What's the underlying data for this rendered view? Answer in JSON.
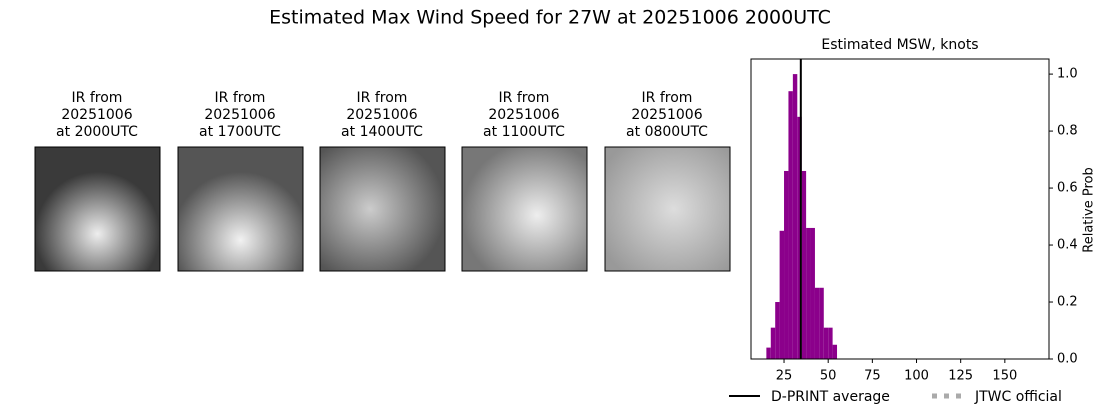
{
  "panels": [
    {
      "lines": [
        "IR from",
        "20251006",
        "at 2000UTC"
      ]
    },
    {
      "lines": [
        "IR from",
        "20251006",
        "at 1700UTC"
      ]
    },
    {
      "lines": [
        "IR from",
        "20251006",
        "at 1400UTC"
      ]
    },
    {
      "lines": [
        "IR from",
        "20251006",
        "at 1100UTC"
      ]
    },
    {
      "lines": [
        "IR from",
        "20251006",
        "at 0800UTC"
      ]
    }
  ],
  "chart_data": {
    "type": "histogram",
    "title": "Estimated Max Wind Speed for 27W at 20251006 2000UTC",
    "subtitle": "Estimated MSW, knots",
    "ylabel": "Relative Prob",
    "bins": [
      15,
      17.5,
      20,
      22.5,
      25,
      27.5,
      30,
      32.5,
      35,
      37.5,
      40,
      42.5,
      45,
      47.5,
      50,
      52.5,
      55
    ],
    "values": [
      0.04,
      0.11,
      0.2,
      0.45,
      0.66,
      0.94,
      1.0,
      0.85,
      0.66,
      0.46,
      0.46,
      0.25,
      0.25,
      0.11,
      0.11,
      0.05
    ],
    "color": "#8b008b",
    "xlim": [
      6.3,
      175
    ],
    "xticks": [
      25,
      50,
      75,
      100,
      125,
      150
    ],
    "ylim": [
      0,
      1.053
    ],
    "yticks": [
      {
        "value": 0,
        "label": "0.0"
      },
      0.2,
      0.4,
      0.6,
      0.8,
      {
        "value": 1,
        "label": "1.0"
      }
    ],
    "y_axis_side": "right",
    "average": {
      "name": "D-PRINT average",
      "value": 34.5,
      "color": "#000000"
    },
    "official": {
      "name": "JTWC official",
      "color": "#aaaaaa"
    }
  }
}
